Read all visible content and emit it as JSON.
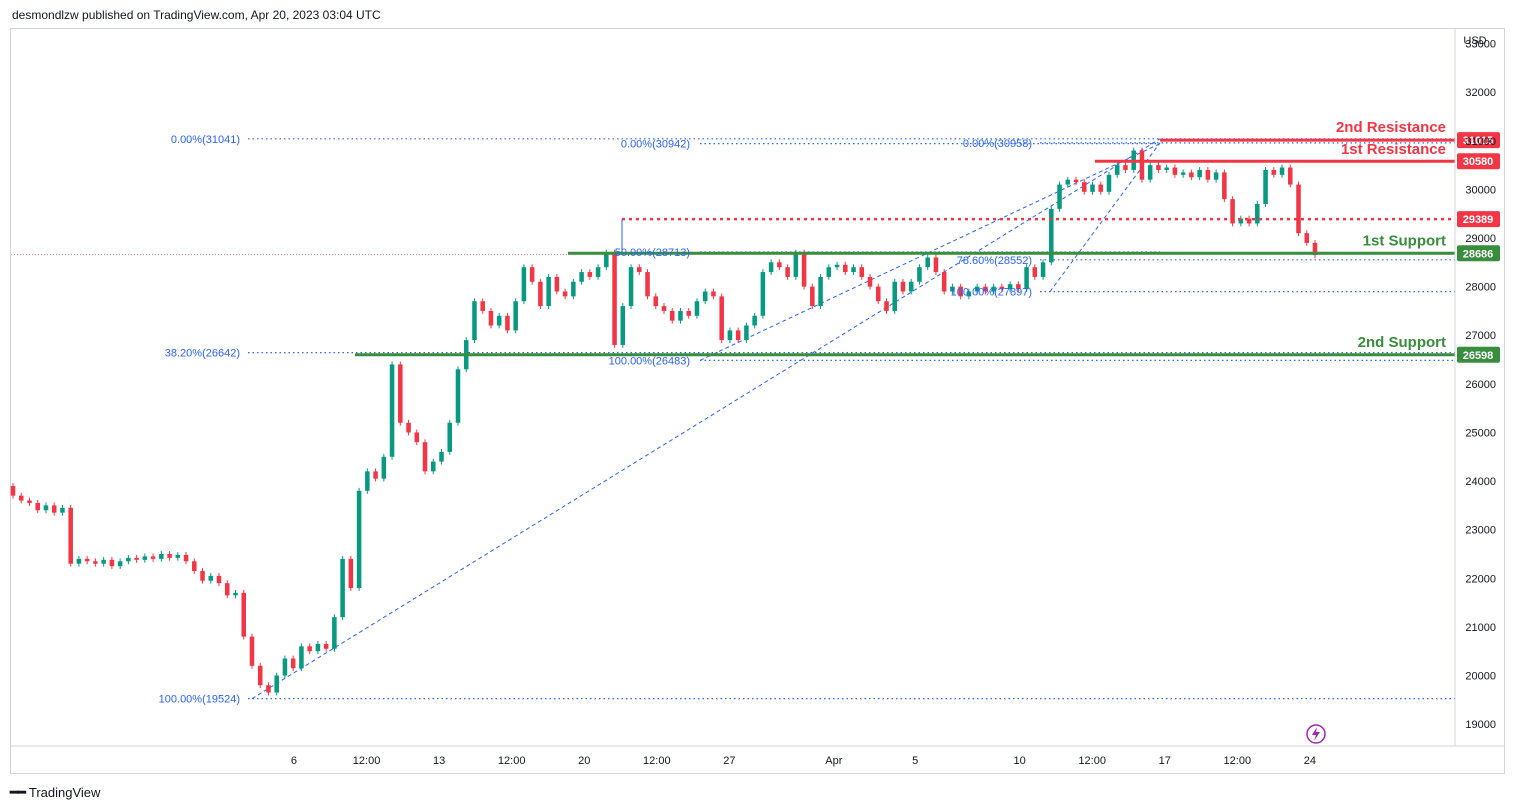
{
  "header": {
    "text": "desmondlzw published on TradingView.com, Apr 20, 2023 03:04 UTC"
  },
  "brand": {
    "name": "TradingView"
  },
  "chart_data": {
    "type": "candlestick",
    "currency_label": "USD",
    "y_ticks": [
      19000,
      20000,
      21000,
      22000,
      23000,
      24000,
      25000,
      26000,
      27000,
      28000,
      29000,
      30000,
      31000,
      32000,
      33000
    ],
    "ylim": [
      18550,
      33300
    ],
    "x_ticks": [
      {
        "label": "6",
        "x": 6
      },
      {
        "label": "12:00",
        "x": 6.5
      },
      {
        "label": "13",
        "x": 7
      },
      {
        "label": "12:00",
        "x": 7.5
      },
      {
        "label": "20",
        "x": 8
      },
      {
        "label": "12:00",
        "x": 8.5
      },
      {
        "label": "27",
        "x": 9
      },
      {
        "label": "Apr",
        "x": 9.72
      },
      {
        "label": "5",
        "x": 10.28
      },
      {
        "label": "10",
        "x": 11
      },
      {
        "label": "12:00",
        "x": 11.5
      },
      {
        "label": "17",
        "x": 12
      },
      {
        "label": "12:00",
        "x": 12.5
      },
      {
        "label": "24",
        "x": 13
      }
    ],
    "levels": [
      {
        "name": "2nd Resistance",
        "value": 31015,
        "color": "#f23645",
        "style": "solid"
      },
      {
        "name": "1st Resistance",
        "value": 30580,
        "color": "#f23645",
        "style": "solid"
      },
      {
        "name": "",
        "value": 29389,
        "color": "#f23645",
        "style": "dotted"
      },
      {
        "name": "1st Support",
        "value": 28686,
        "color": "#388e3c",
        "style": "solid"
      },
      {
        "name": "2nd Support",
        "value": 26598,
        "color": "#388e3c",
        "style": "solid"
      }
    ],
    "fib_labels": [
      {
        "text": "0.00%(31041)",
        "value": 31041
      },
      {
        "text": "38.20%(26642)",
        "value": 26642
      },
      {
        "text": "100.00%(19524)",
        "value": 19524
      },
      {
        "text": "0.00%(30942)",
        "value": 30942
      },
      {
        "text": "50.00%(28713)",
        "value": 28713
      },
      {
        "text": "100.00%(26483)",
        "value": 26483
      },
      {
        "text": "0.00%(30958)",
        "value": 30958
      },
      {
        "text": "78.60%(28552)",
        "value": 28552
      },
      {
        "text": "100.00%(27897)",
        "value": 27897
      }
    ],
    "candles": [
      {
        "o": 23900,
        "c": 23700
      },
      {
        "o": 23700,
        "c": 23600
      },
      {
        "o": 23600,
        "c": 23550
      },
      {
        "o": 23550,
        "c": 23400
      },
      {
        "o": 23400,
        "c": 23500
      },
      {
        "o": 23500,
        "c": 23350
      },
      {
        "o": 23350,
        "c": 23450
      },
      {
        "o": 23450,
        "c": 22300
      },
      {
        "o": 22300,
        "c": 22400
      },
      {
        "o": 22400,
        "c": 22350
      },
      {
        "o": 22350,
        "c": 22300
      },
      {
        "o": 22300,
        "c": 22380
      },
      {
        "o": 22380,
        "c": 22250
      },
      {
        "o": 22250,
        "c": 22350
      },
      {
        "o": 22350,
        "c": 22420
      },
      {
        "o": 22420,
        "c": 22380
      },
      {
        "o": 22380,
        "c": 22450
      },
      {
        "o": 22450,
        "c": 22400
      },
      {
        "o": 22400,
        "c": 22500
      },
      {
        "o": 22500,
        "c": 22420
      },
      {
        "o": 22420,
        "c": 22480
      },
      {
        "o": 22480,
        "c": 22350
      },
      {
        "o": 22350,
        "c": 22150
      },
      {
        "o": 22150,
        "c": 21950
      },
      {
        "o": 21950,
        "c": 22050
      },
      {
        "o": 22050,
        "c": 21900
      },
      {
        "o": 21900,
        "c": 21650
      },
      {
        "o": 21650,
        "c": 21700
      },
      {
        "o": 21700,
        "c": 20800
      },
      {
        "o": 20800,
        "c": 20200
      },
      {
        "o": 20200,
        "c": 19800
      },
      {
        "o": 19800,
        "c": 19650
      },
      {
        "o": 19650,
        "c": 20000
      },
      {
        "o": 20000,
        "c": 20350
      },
      {
        "o": 20350,
        "c": 20150
      },
      {
        "o": 20150,
        "c": 20600
      },
      {
        "o": 20600,
        "c": 20500
      },
      {
        "o": 20500,
        "c": 20650
      },
      {
        "o": 20650,
        "c": 20550
      },
      {
        "o": 20550,
        "c": 21200
      },
      {
        "o": 21200,
        "c": 22400
      },
      {
        "o": 22400,
        "c": 21800
      },
      {
        "o": 21800,
        "c": 23800
      },
      {
        "o": 23800,
        "c": 24200
      },
      {
        "o": 24200,
        "c": 24050
      },
      {
        "o": 24050,
        "c": 24500
      },
      {
        "o": 24500,
        "c": 26400
      },
      {
        "o": 26400,
        "c": 25200
      },
      {
        "o": 25200,
        "c": 25000
      },
      {
        "o": 25000,
        "c": 24800
      },
      {
        "o": 24800,
        "c": 24200
      },
      {
        "o": 24200,
        "c": 24400
      },
      {
        "o": 24400,
        "c": 24600
      },
      {
        "o": 24600,
        "c": 25200
      },
      {
        "o": 25200,
        "c": 26300
      },
      {
        "o": 26300,
        "c": 26900
      },
      {
        "o": 26900,
        "c": 27700
      },
      {
        "o": 27700,
        "c": 27500
      },
      {
        "o": 27500,
        "c": 27200
      },
      {
        "o": 27200,
        "c": 27400
      },
      {
        "o": 27400,
        "c": 27100
      },
      {
        "o": 27100,
        "c": 27700
      },
      {
        "o": 27700,
        "c": 28400
      },
      {
        "o": 28400,
        "c": 28100
      },
      {
        "o": 28100,
        "c": 27600
      },
      {
        "o": 27600,
        "c": 28200
      },
      {
        "o": 28200,
        "c": 27900
      },
      {
        "o": 27900,
        "c": 27800
      },
      {
        "o": 27800,
        "c": 28100
      },
      {
        "o": 28100,
        "c": 28300
      },
      {
        "o": 28300,
        "c": 28200
      },
      {
        "o": 28200,
        "c": 28400
      },
      {
        "o": 28400,
        "c": 28700
      },
      {
        "o": 28700,
        "c": 26800
      },
      {
        "o": 26800,
        "c": 27600
      },
      {
        "o": 27600,
        "c": 28400
      },
      {
        "o": 28400,
        "c": 28300
      },
      {
        "o": 28300,
        "c": 27800
      },
      {
        "o": 27800,
        "c": 27600
      },
      {
        "o": 27600,
        "c": 27500
      },
      {
        "o": 27500,
        "c": 27300
      },
      {
        "o": 27300,
        "c": 27500
      },
      {
        "o": 27500,
        "c": 27400
      },
      {
        "o": 27400,
        "c": 27700
      },
      {
        "o": 27700,
        "c": 27900
      },
      {
        "o": 27900,
        "c": 27800
      },
      {
        "o": 27800,
        "c": 26900
      },
      {
        "o": 26900,
        "c": 27100
      },
      {
        "o": 27100,
        "c": 26900
      },
      {
        "o": 26900,
        "c": 27200
      },
      {
        "o": 27200,
        "c": 27400
      },
      {
        "o": 27400,
        "c": 28300
      },
      {
        "o": 28300,
        "c": 28500
      },
      {
        "o": 28500,
        "c": 28400
      },
      {
        "o": 28400,
        "c": 28200
      },
      {
        "o": 28200,
        "c": 28700
      },
      {
        "o": 28700,
        "c": 28000
      },
      {
        "o": 28000,
        "c": 27600
      },
      {
        "o": 27600,
        "c": 28200
      },
      {
        "o": 28200,
        "c": 28400
      },
      {
        "o": 28400,
        "c": 28450
      },
      {
        "o": 28450,
        "c": 28300
      },
      {
        "o": 28300,
        "c": 28400
      },
      {
        "o": 28400,
        "c": 28200
      },
      {
        "o": 28200,
        "c": 28000
      },
      {
        "o": 28000,
        "c": 27700
      },
      {
        "o": 27700,
        "c": 27500
      },
      {
        "o": 27500,
        "c": 28100
      },
      {
        "o": 28100,
        "c": 27900
      },
      {
        "o": 27900,
        "c": 28100
      },
      {
        "o": 28100,
        "c": 28400
      },
      {
        "o": 28400,
        "c": 28600
      },
      {
        "o": 28600,
        "c": 28300
      },
      {
        "o": 28300,
        "c": 27900
      },
      {
        "o": 27900,
        "c": 28000
      },
      {
        "o": 28000,
        "c": 27800
      },
      {
        "o": 27800,
        "c": 27900
      },
      {
        "o": 27900,
        "c": 28000
      },
      {
        "o": 28000,
        "c": 27900
      },
      {
        "o": 27900,
        "c": 28000
      },
      {
        "o": 28000,
        "c": 27950
      },
      {
        "o": 27950,
        "c": 28050
      },
      {
        "o": 28050,
        "c": 27950
      },
      {
        "o": 27950,
        "c": 28400
      },
      {
        "o": 28400,
        "c": 28200
      },
      {
        "o": 28200,
        "c": 28500
      },
      {
        "o": 28500,
        "c": 29600
      },
      {
        "o": 29600,
        "c": 30100
      },
      {
        "o": 30100,
        "c": 30200
      },
      {
        "o": 30200,
        "c": 30150
      },
      {
        "o": 30150,
        "c": 29950
      },
      {
        "o": 29950,
        "c": 30100
      },
      {
        "o": 30100,
        "c": 29950
      },
      {
        "o": 29950,
        "c": 30300
      },
      {
        "o": 30300,
        "c": 30500
      },
      {
        "o": 30500,
        "c": 30400
      },
      {
        "o": 30400,
        "c": 30800
      },
      {
        "o": 30800,
        "c": 30200
      },
      {
        "o": 30200,
        "c": 30500
      },
      {
        "o": 30500,
        "c": 30400
      },
      {
        "o": 30400,
        "c": 30450
      },
      {
        "o": 30450,
        "c": 30300
      },
      {
        "o": 30300,
        "c": 30350
      },
      {
        "o": 30350,
        "c": 30250
      },
      {
        "o": 30250,
        "c": 30400
      },
      {
        "o": 30400,
        "c": 30200
      },
      {
        "o": 30200,
        "c": 30350
      },
      {
        "o": 30350,
        "c": 29800
      },
      {
        "o": 29800,
        "c": 29300
      },
      {
        "o": 29300,
        "c": 29400
      },
      {
        "o": 29400,
        "c": 29300
      },
      {
        "o": 29300,
        "c": 29700
      },
      {
        "o": 29700,
        "c": 30400
      },
      {
        "o": 30400,
        "c": 30300
      },
      {
        "o": 30300,
        "c": 30450
      },
      {
        "o": 30450,
        "c": 30100
      },
      {
        "o": 30100,
        "c": 29100
      },
      {
        "o": 29100,
        "c": 28900
      },
      {
        "o": 28900,
        "c": 28650
      }
    ],
    "x_range": [
      4.05,
      14
    ]
  }
}
